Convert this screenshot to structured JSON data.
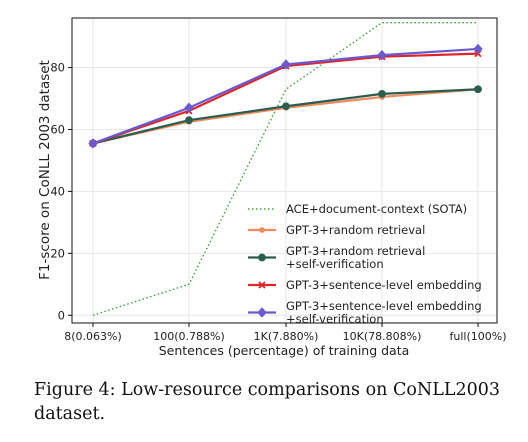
{
  "chart_data": {
    "type": "line",
    "xlabel": "Sentences (percentage) of training data",
    "ylabel": "F1-score on CoNLL 2003 dataset",
    "categories": [
      "8(0.063%)",
      "100(0.788%)",
      "1K(7.880%)",
      "10K(78.808%)",
      "full(100%)"
    ],
    "ylim": [
      0,
      96
    ],
    "yticks": [
      0,
      20,
      40,
      60,
      80
    ],
    "grid": true,
    "legend_position": "lower-right",
    "series": [
      {
        "name": "ACE+document-context (SOTA)",
        "color": "#3aa03a",
        "style": "dotted",
        "marker": "none",
        "values": [
          0,
          10,
          73,
          94.5,
          94.5
        ]
      },
      {
        "name": "GPT-3+random retrieval",
        "color": "#f08a5d",
        "style": "solid",
        "marker": "dot",
        "values": [
          55.5,
          62.5,
          67,
          70.5,
          73
        ]
      },
      {
        "name": "GPT-3+random retrieval\n+self-verification",
        "color": "#2b5e4e",
        "style": "solid",
        "marker": "circle",
        "values": [
          55.5,
          63,
          67.5,
          71.5,
          73
        ]
      },
      {
        "name": "GPT-3+sentence-level embedding",
        "color": "#e0242b",
        "style": "solid",
        "marker": "x",
        "values": [
          55.5,
          66,
          80.5,
          83.5,
          84.5
        ]
      },
      {
        "name": "GPT-3+sentence-level embedding\n+self-verification",
        "color": "#6a5acd",
        "style": "solid",
        "marker": "diamond",
        "values": [
          55.5,
          67,
          81,
          84,
          86
        ]
      }
    ]
  },
  "caption": "Figure 4: Low-resource comparisons on CoNLL2003 dataset."
}
